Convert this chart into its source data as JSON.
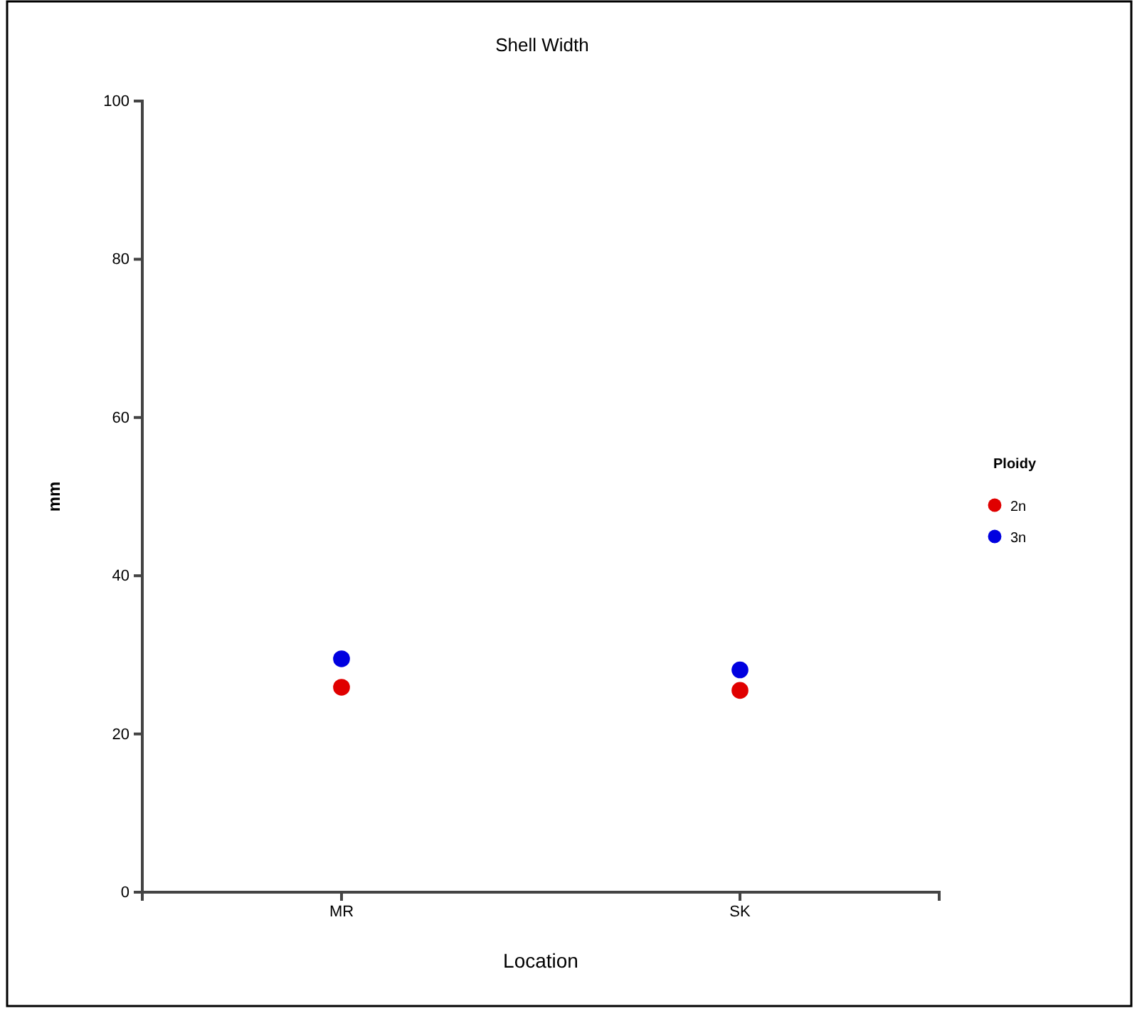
{
  "chart_data": {
    "type": "scatter",
    "title": "Shell Width",
    "xlabel": "Location",
    "ylabel": "mm",
    "legend_title": "Ploidy",
    "categories": [
      "MR",
      "SK"
    ],
    "series": [
      {
        "name": "2n",
        "color": "#e00000",
        "values": [
          25.9,
          25.5
        ]
      },
      {
        "name": "3n",
        "color": "#0000e0",
        "values": [
          29.5,
          28.1
        ]
      }
    ],
    "ylim": [
      0,
      100
    ],
    "yticks": [
      0,
      20,
      40,
      60,
      80,
      100
    ],
    "grid": false,
    "legend": "right",
    "marker": "circle"
  }
}
